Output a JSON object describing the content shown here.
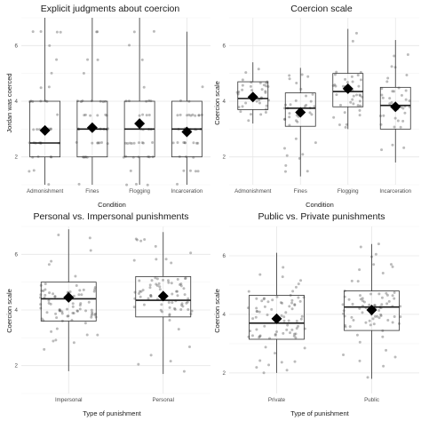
{
  "chart_data": [
    {
      "type": "box",
      "title": "Explicit judgments about coercion",
      "xlabel": "Condition",
      "ylabel": "Jordan was coerced",
      "ylim": [
        1,
        7
      ],
      "yticks": [
        2,
        4,
        6
      ],
      "grid": true,
      "categories": [
        "Admonishment",
        "Fines",
        "Flogging",
        "Incarceration"
      ],
      "boxes": [
        {
          "min": 1.0,
          "q1": 2.0,
          "median": 2.5,
          "q3": 4.0,
          "max": 7.0,
          "mean": 2.95
        },
        {
          "min": 1.0,
          "q1": 2.0,
          "median": 3.0,
          "q3": 4.0,
          "max": 7.0,
          "mean": 3.05
        },
        {
          "min": 1.0,
          "q1": 2.0,
          "median": 3.0,
          "q3": 4.0,
          "max": 7.0,
          "mean": 3.2
        },
        {
          "min": 1.0,
          "q1": 2.0,
          "median": 3.0,
          "q3": 4.0,
          "max": 6.5,
          "mean": 2.9
        }
      ]
    },
    {
      "type": "box",
      "title": "Coercion scale",
      "xlabel": "Condition",
      "ylabel": "Coercion scale",
      "ylim": [
        1,
        7
      ],
      "yticks": [
        2,
        4,
        6
      ],
      "grid": true,
      "categories": [
        "Admonishment",
        "Fines",
        "Flogging",
        "Incarceration"
      ],
      "boxes": [
        {
          "min": 3.2,
          "q1": 3.7,
          "median": 4.1,
          "q3": 4.7,
          "max": 5.4,
          "mean": 4.15
        },
        {
          "min": 1.3,
          "q1": 3.1,
          "median": 3.75,
          "q3": 4.3,
          "max": 5.2,
          "mean": 3.6
        },
        {
          "min": 3.0,
          "q1": 3.8,
          "median": 4.35,
          "q3": 5.0,
          "max": 6.6,
          "mean": 4.45
        },
        {
          "min": 1.8,
          "q1": 3.0,
          "median": 3.85,
          "q3": 4.5,
          "max": 6.2,
          "mean": 3.8
        }
      ]
    },
    {
      "type": "box",
      "title": "Personal vs. Impersonal punishments",
      "xlabel": "Type of punishment",
      "ylabel": "Coercion scale",
      "ylim": [
        1,
        7
      ],
      "yticks": [
        2,
        4,
        6
      ],
      "grid": true,
      "categories": [
        "Impersonal",
        "Personal"
      ],
      "boxes": [
        {
          "min": 1.8,
          "q1": 3.6,
          "median": 4.4,
          "q3": 5.0,
          "max": 6.9,
          "mean": 4.45
        },
        {
          "min": 1.7,
          "q1": 3.75,
          "median": 4.35,
          "q3": 5.2,
          "max": 6.8,
          "mean": 4.5
        }
      ]
    },
    {
      "type": "box",
      "title": "Public vs. Private punishments",
      "xlabel": "Type of punishment",
      "ylabel": "Coercion scale",
      "ylim": [
        1.3,
        7
      ],
      "yticks": [
        2,
        4,
        6
      ],
      "grid": true,
      "categories": [
        "Private",
        "Public"
      ],
      "boxes": [
        {
          "min": 2.0,
          "q1": 3.15,
          "median": 3.7,
          "q3": 4.65,
          "max": 6.1,
          "mean": 3.85
        },
        {
          "min": 1.8,
          "q1": 3.45,
          "median": 4.25,
          "q3": 4.8,
          "max": 6.4,
          "mean": 4.15
        }
      ]
    }
  ]
}
